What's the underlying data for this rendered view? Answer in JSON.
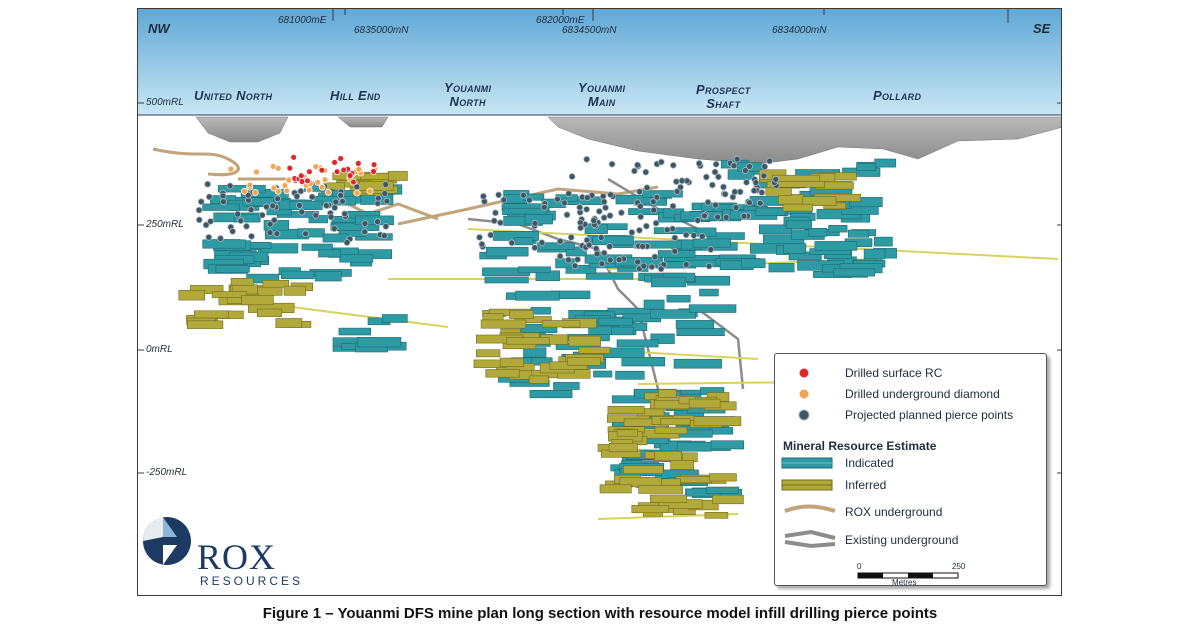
{
  "map": {
    "corners": {
      "left": "NW",
      "right": "SE"
    },
    "coordinates": {
      "easting_1": "681000mE",
      "northing_1": "6835000mN",
      "easting_2": "682000mE",
      "northing_2": "6834500mN",
      "northing_3": "6834000mN"
    },
    "areas": [
      {
        "line1": "United North",
        "line2": ""
      },
      {
        "line1": "Hill End",
        "line2": ""
      },
      {
        "line1": "Youanmi",
        "line2": "North"
      },
      {
        "line1": "Youanmi",
        "line2": "Main"
      },
      {
        "line1": "Prospect",
        "line2": "Shaft"
      },
      {
        "line1": "Pollard",
        "line2": ""
      }
    ],
    "rl_levels": [
      "500mRL",
      "250mRL",
      "0mRL",
      "-250mRL"
    ],
    "colors": {
      "sky": "#a9d3ea",
      "indicated": "#2e9aa3",
      "inferred": "#b1aa3a",
      "surface_rc": "#e3262a",
      "underground_diamond": "#f2a450",
      "pierce_points": "#3f5663"
    }
  },
  "legend": {
    "items": [
      {
        "label": "Drilled surface RC",
        "icon": "red-dot"
      },
      {
        "label": "Drilled underground diamond",
        "icon": "orange-dot"
      },
      {
        "label": "Projected planned pierce points",
        "icon": "dark-grey-dot"
      }
    ],
    "heading": "Mineral Resource Estimate",
    "resource_items": [
      {
        "label": "Indicated",
        "icon": "teal-block"
      },
      {
        "label": "Inferred",
        "icon": "olive-block"
      }
    ],
    "workings": [
      {
        "label": "ROX underground",
        "icon": "tan-drive"
      },
      {
        "label": "Existing underground",
        "icon": "grey-drive"
      }
    ],
    "scale": {
      "start": "0",
      "end": "250",
      "unit": "Metres"
    }
  },
  "logo": {
    "name": "ROX",
    "sub": "RESOURCES"
  },
  "caption": "Figure 1 – Youanmi DFS mine plan long section with resource model infill drilling pierce points"
}
